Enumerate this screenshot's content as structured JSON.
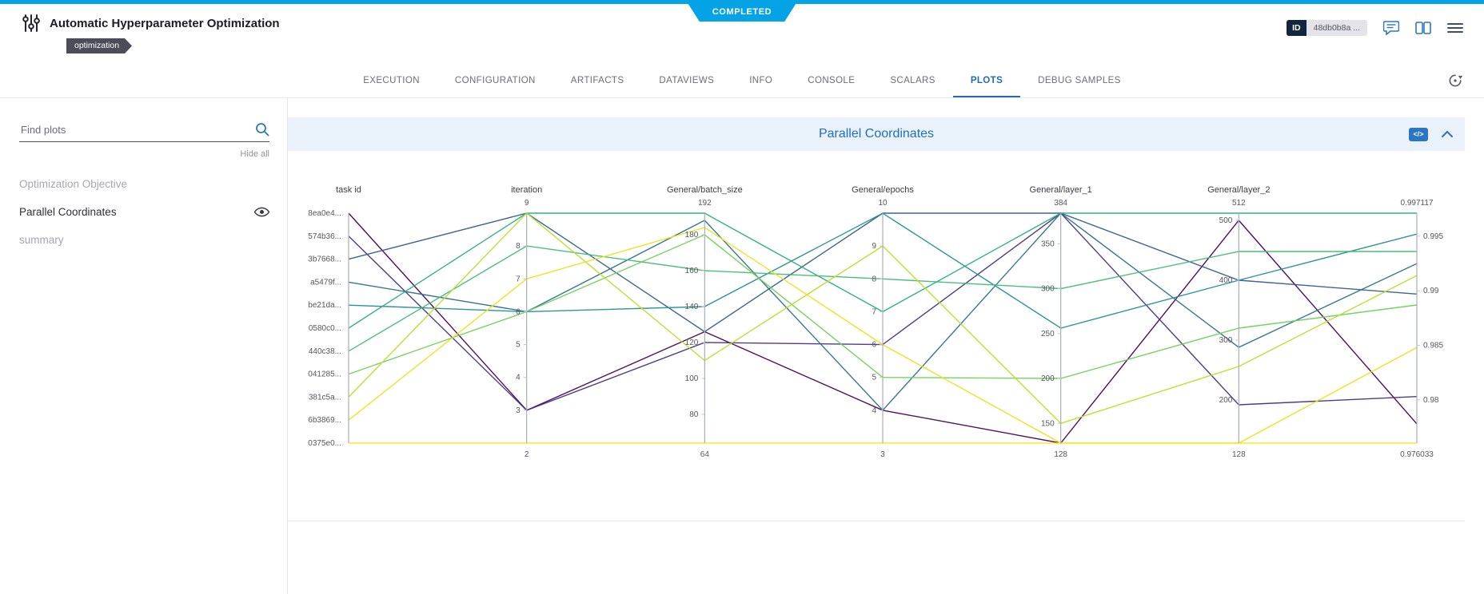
{
  "colors": {
    "accent_blue": "#2468bd",
    "status_blue": "#04a3e6",
    "panel_header_bg": "#e9f1fb"
  },
  "status_banner": {
    "label": "COMPLETED"
  },
  "header": {
    "title": "Automatic Hyperparameter Optimization",
    "tag": "optimization",
    "id_label": "ID",
    "id_value": "48db0b8a ..."
  },
  "tabs": {
    "items": [
      "EXECUTION",
      "CONFIGURATION",
      "ARTIFACTS",
      "DATAVIEWS",
      "INFO",
      "CONSOLE",
      "SCALARS",
      "PLOTS",
      "DEBUG SAMPLES"
    ],
    "active": "PLOTS"
  },
  "sidebar": {
    "search_placeholder": "Find plots",
    "hide_all_label": "Hide all",
    "items": [
      {
        "label": "Optimization Objective",
        "muted": true,
        "eye": false
      },
      {
        "label": "Parallel Coordinates",
        "muted": false,
        "eye": true
      },
      {
        "label": "summary",
        "muted": true,
        "eye": false
      }
    ]
  },
  "panel": {
    "title": "Parallel Coordinates",
    "code_icon_glyph": "</>"
  },
  "chart_data": {
    "type": "parallel-coordinates",
    "title": "Parallel Coordinates",
    "axes": [
      {
        "key": "task",
        "title": "task id",
        "categorical": true,
        "categories": [
          "8ea0e4...",
          "574b36...",
          "3b7668...",
          "a5479f...",
          "be21da...",
          "0580c0...",
          "440c38...",
          "041285...",
          "381c5a...",
          "6b3869...",
          "0375e0..."
        ]
      },
      {
        "key": "iteration",
        "title": "iteration",
        "min": 2,
        "max": 9,
        "ticks": [
          8,
          7,
          6,
          5,
          4,
          3
        ]
      },
      {
        "key": "batch",
        "title": "General/batch_size",
        "min": 64,
        "max": 192,
        "ticks": [
          180,
          160,
          140,
          120,
          100,
          80
        ]
      },
      {
        "key": "epochs",
        "title": "General/epochs",
        "min": 3,
        "max": 10,
        "ticks": [
          9,
          8,
          7,
          6,
          5,
          4
        ]
      },
      {
        "key": "layer1",
        "title": "General/layer_1",
        "min": 128,
        "max": 384,
        "ticks": [
          350,
          300,
          250,
          200,
          150
        ]
      },
      {
        "key": "layer2",
        "title": "General/layer_2",
        "min": 128,
        "max": 512,
        "ticks": [
          500,
          400,
          300,
          200
        ]
      },
      {
        "key": "objective",
        "title": "",
        "min": 0.976033,
        "max": 0.997117,
        "min_label": "0.976033",
        "max_label": "0.997117",
        "ticks": [
          0.995,
          0.99,
          0.985,
          0.98
        ],
        "labels_right": true
      }
    ],
    "series": [
      {
        "task": "8ea0e4...",
        "color": "#440154",
        "values": {
          "iteration": 3,
          "batch": 126,
          "epochs": 4,
          "layer1": 128,
          "layer2": 500,
          "objective": 0.9778
        }
      },
      {
        "task": "574b36...",
        "color": "#46327e",
        "values": {
          "iteration": 3,
          "batch": 120,
          "epochs": 6,
          "layer1": 384,
          "layer2": 192,
          "objective": 0.9803
        }
      },
      {
        "task": "3b7668...",
        "color": "#365c8d",
        "values": {
          "iteration": 9,
          "batch": 126,
          "epochs": 10,
          "layer1": 384,
          "layer2": 400,
          "objective": 0.9897
        }
      },
      {
        "task": "a5479f...",
        "color": "#2e6e8e",
        "values": {
          "iteration": 6,
          "batch": 188,
          "epochs": 4,
          "layer1": 384,
          "layer2": 288,
          "objective": 0.9925
        }
      },
      {
        "task": "be21da...",
        "color": "#21918c",
        "values": {
          "iteration": 6,
          "batch": 140,
          "epochs": 10,
          "layer1": 256,
          "layer2": 400,
          "objective": 0.9952
        }
      },
      {
        "task": "0580c0...",
        "color": "#27ad81",
        "values": {
          "iteration": 9,
          "batch": 192,
          "epochs": 7,
          "layer1": 384,
          "layer2": 512,
          "objective": 0.997117
        }
      },
      {
        "task": "440c38...",
        "color": "#3fbc73",
        "values": {
          "iteration": 8,
          "batch": 160,
          "epochs": 8,
          "layer1": 300,
          "layer2": 448,
          "objective": 0.9936
        }
      },
      {
        "task": "041285...",
        "color": "#70cf57",
        "values": {
          "iteration": 6,
          "batch": 180,
          "epochs": 5,
          "layer1": 200,
          "layer2": 320,
          "objective": 0.9887
        }
      },
      {
        "task": "381c5a...",
        "color": "#b8de29",
        "values": {
          "iteration": 9,
          "batch": 110,
          "epochs": 9,
          "layer1": 150,
          "layer2": 256,
          "objective": 0.9914
        }
      },
      {
        "task": "6b3869...",
        "color": "#e8e419",
        "values": {
          "iteration": 7,
          "batch": 184,
          "epochs": 6,
          "layer1": 128,
          "layer2": 128,
          "objective": 0.9848
        }
      },
      {
        "task": "0375e0...",
        "color": "#fde725",
        "values": {
          "iteration": 2,
          "batch": 64,
          "epochs": 3,
          "layer1": 128,
          "layer2": 128,
          "objective": 0.976033
        }
      }
    ]
  }
}
